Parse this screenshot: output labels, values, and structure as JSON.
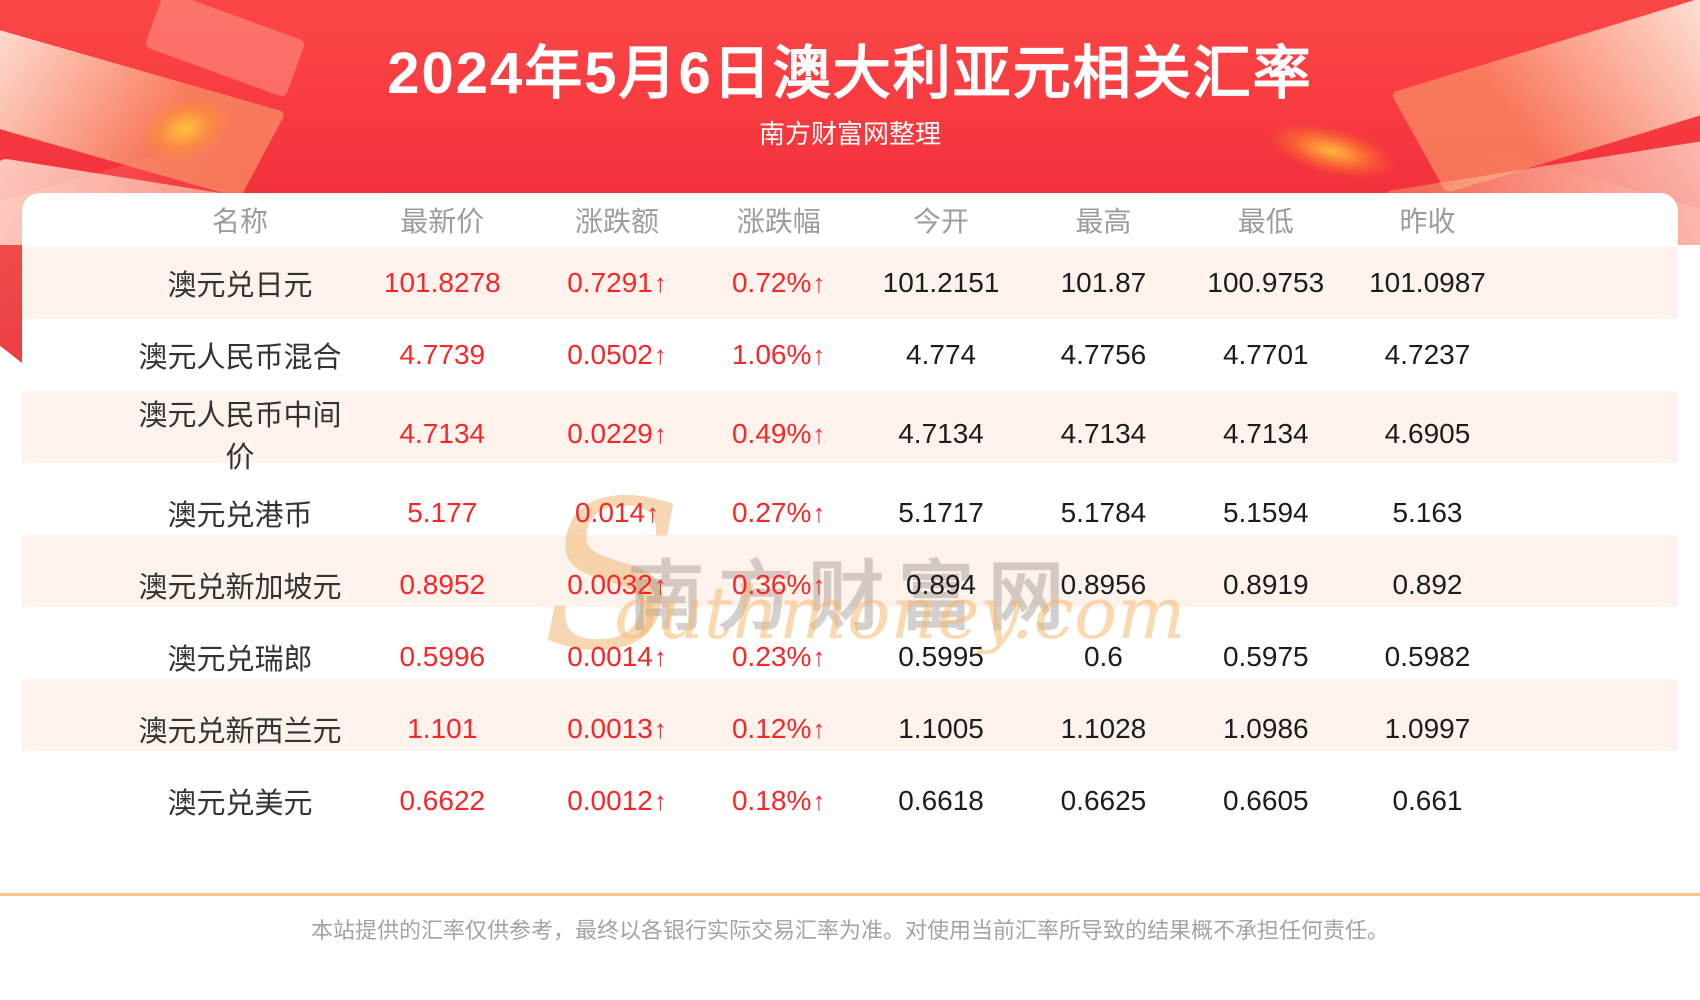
{
  "chart_data": {
    "type": "table",
    "title": "2024年5月6日澳大利亚元相关汇率",
    "subtitle": "南方财富网整理",
    "arrow_up": "↑",
    "columns": [
      {
        "key": "name",
        "label": "名称"
      },
      {
        "key": "latest",
        "label": "最新价"
      },
      {
        "key": "change",
        "label": "涨跌额"
      },
      {
        "key": "change_pct",
        "label": "涨跌幅"
      },
      {
        "key": "open",
        "label": "今开"
      },
      {
        "key": "high",
        "label": "最高"
      },
      {
        "key": "low",
        "label": "最低"
      },
      {
        "key": "prev_close",
        "label": "昨收"
      }
    ],
    "rows": [
      {
        "name": "澳元兑日元",
        "latest": "101.8278",
        "change": "0.7291",
        "change_dir": "up",
        "change_pct": "0.72%",
        "change_pct_dir": "up",
        "open": "101.2151",
        "high": "101.87",
        "low": "100.9753",
        "prev_close": "101.0987"
      },
      {
        "name": "澳元人民币混合",
        "latest": "4.7739",
        "change": "0.0502",
        "change_dir": "up",
        "change_pct": "1.06%",
        "change_pct_dir": "up",
        "open": "4.774",
        "high": "4.7756",
        "low": "4.7701",
        "prev_close": "4.7237"
      },
      {
        "name": "澳元人民币中间价",
        "latest": "4.7134",
        "change": "0.0229",
        "change_dir": "up",
        "change_pct": "0.49%",
        "change_pct_dir": "up",
        "open": "4.7134",
        "high": "4.7134",
        "low": "4.7134",
        "prev_close": "4.6905"
      },
      {
        "name": "澳元兑港币",
        "latest": "5.177",
        "change": "0.014",
        "change_dir": "up",
        "change_pct": "0.27%",
        "change_pct_dir": "up",
        "open": "5.1717",
        "high": "5.1784",
        "low": "5.1594",
        "prev_close": "5.163"
      },
      {
        "name": "澳元兑新加坡元",
        "latest": "0.8952",
        "change": "0.0032",
        "change_dir": "up",
        "change_pct": "0.36%",
        "change_pct_dir": "up",
        "open": "0.894",
        "high": "0.8956",
        "low": "0.8919",
        "prev_close": "0.892"
      },
      {
        "name": "澳元兑瑞郎",
        "latest": "0.5996",
        "change": "0.0014",
        "change_dir": "up",
        "change_pct": "0.23%",
        "change_pct_dir": "up",
        "open": "0.5995",
        "high": "0.6",
        "low": "0.5975",
        "prev_close": "0.5982"
      },
      {
        "name": "澳元兑新西兰元",
        "latest": "1.101",
        "change": "0.0013",
        "change_dir": "up",
        "change_pct": "0.12%",
        "change_pct_dir": "up",
        "open": "1.1005",
        "high": "1.1028",
        "low": "1.0986",
        "prev_close": "1.0997"
      },
      {
        "name": "澳元兑美元",
        "latest": "0.6622",
        "change": "0.0012",
        "change_dir": "up",
        "change_pct": "0.18%",
        "change_pct_dir": "up",
        "open": "0.6618",
        "high": "0.6625",
        "low": "0.6605",
        "prev_close": "0.661"
      }
    ]
  },
  "watermark": {
    "s": "S",
    "cn": "南方财富网",
    "en": "outhmoney.com"
  },
  "footer": {
    "disclaimer": "本站提供的汇率仅供参考，最终以各银行实际交易汇率为准。对使用当前汇率所导致的结果概不承担任何责任。"
  },
  "colors": {
    "hero_red_top": "#fb4747",
    "hero_red_bottom": "#f02a38",
    "value_red": "#f82626",
    "row_stripe": "#fdf3ec",
    "separator_tan": "#f7c490",
    "header_gray": "#9c9c9c"
  }
}
